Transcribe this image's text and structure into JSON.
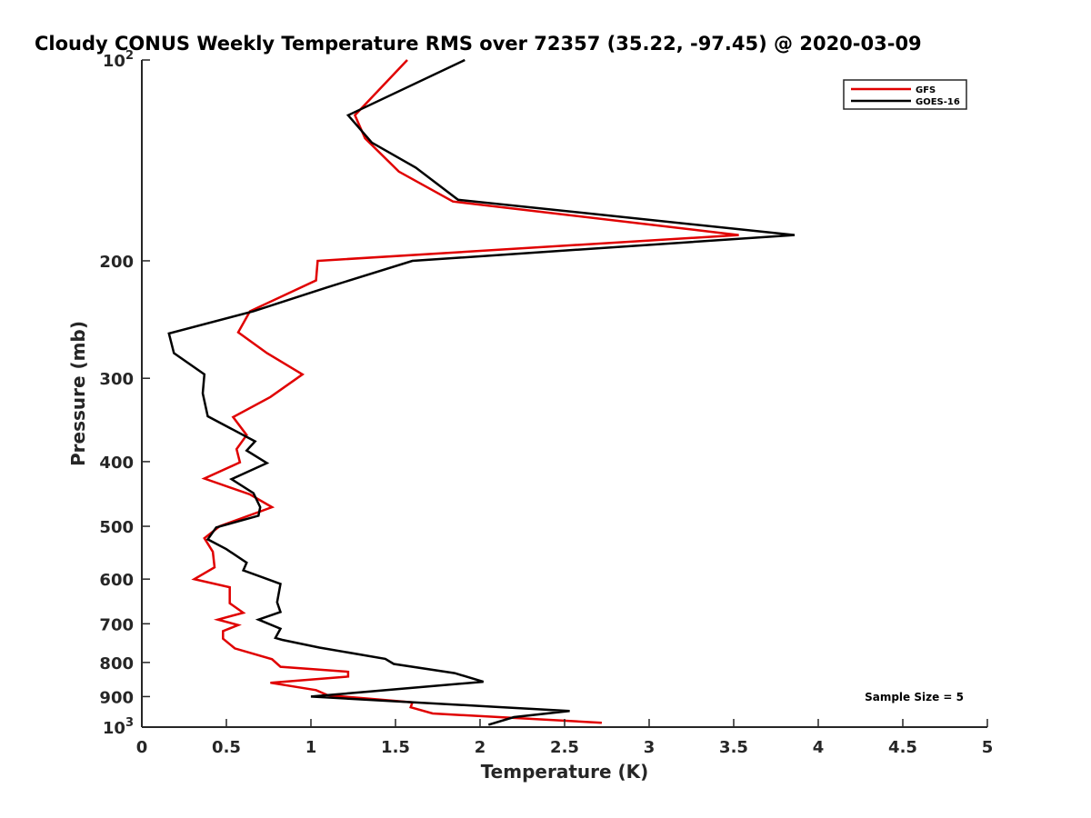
{
  "chart_data": {
    "type": "line",
    "title": "Cloudy CONUS Weekly Temperature RMS over 72357 (35.22, -97.45) @ 2020-03-09",
    "xlabel": "Temperature (K)",
    "ylabel": "Pressure (mb)",
    "xlim": [
      0,
      5
    ],
    "ylim": [
      100,
      1000
    ],
    "y_scale": "log",
    "y_reversed": true,
    "grid": false,
    "legend_position": "top-right",
    "x_ticks": [
      {
        "value": 0,
        "label": "0"
      },
      {
        "value": 0.5,
        "label": "0.5"
      },
      {
        "value": 1,
        "label": "1"
      },
      {
        "value": 1.5,
        "label": "1.5"
      },
      {
        "value": 2,
        "label": "2"
      },
      {
        "value": 2.5,
        "label": "2.5"
      },
      {
        "value": 3,
        "label": "3"
      },
      {
        "value": 3.5,
        "label": "3.5"
      },
      {
        "value": 4,
        "label": "4"
      },
      {
        "value": 4.5,
        "label": "4.5"
      },
      {
        "value": 5,
        "label": "5"
      }
    ],
    "y_ticks": [
      {
        "value": 100,
        "base": "10",
        "exp": "2"
      },
      {
        "value": 200,
        "label": "200"
      },
      {
        "value": 300,
        "label": "300"
      },
      {
        "value": 400,
        "label": "400"
      },
      {
        "value": 500,
        "label": "500"
      },
      {
        "value": 600,
        "label": "600"
      },
      {
        "value": 700,
        "label": "700"
      },
      {
        "value": 800,
        "label": "800"
      },
      {
        "value": 900,
        "label": "900"
      },
      {
        "value": 1000,
        "base": "10",
        "exp": "3"
      }
    ],
    "annotation": "Sample Size = 5",
    "series": [
      {
        "name": "GFS",
        "color": "#e00000",
        "points": [
          [
            1.57,
            100
          ],
          [
            1.26,
            121
          ],
          [
            1.32,
            131
          ],
          [
            1.52,
            147
          ],
          [
            1.84,
            163
          ],
          [
            3.53,
            183
          ],
          [
            1.04,
            200
          ],
          [
            1.03,
            214
          ],
          [
            0.64,
            238
          ],
          [
            0.57,
            256
          ],
          [
            0.74,
            275
          ],
          [
            0.95,
            296
          ],
          [
            0.76,
            320
          ],
          [
            0.54,
            343
          ],
          [
            0.62,
            365
          ],
          [
            0.56,
            383
          ],
          [
            0.58,
            401
          ],
          [
            0.37,
            424
          ],
          [
            0.64,
            448
          ],
          [
            0.77,
            468
          ],
          [
            0.46,
            500
          ],
          [
            0.37,
            521
          ],
          [
            0.42,
            546
          ],
          [
            0.43,
            576
          ],
          [
            0.31,
            600
          ],
          [
            0.52,
            617
          ],
          [
            0.52,
            652
          ],
          [
            0.6,
            674
          ],
          [
            0.45,
            690
          ],
          [
            0.57,
            703
          ],
          [
            0.48,
            718
          ],
          [
            0.48,
            737
          ],
          [
            0.55,
            762
          ],
          [
            0.77,
            791
          ],
          [
            0.82,
            812
          ],
          [
            1.22,
            826
          ],
          [
            1.22,
            840
          ],
          [
            0.76,
            858
          ],
          [
            1.03,
            880
          ],
          [
            1.1,
            896
          ],
          [
            1.6,
            918
          ],
          [
            1.59,
            934
          ],
          [
            1.72,
            954
          ],
          [
            2.72,
            985
          ]
        ]
      },
      {
        "name": "GOES-16",
        "color": "#000000",
        "points": [
          [
            1.91,
            100
          ],
          [
            1.22,
            121
          ],
          [
            1.36,
            133
          ],
          [
            1.62,
            145
          ],
          [
            1.87,
            162
          ],
          [
            3.86,
            183
          ],
          [
            1.6,
            200
          ],
          [
            1.1,
            219
          ],
          [
            0.66,
            238
          ],
          [
            0.16,
            257
          ],
          [
            0.19,
            275
          ],
          [
            0.37,
            296
          ],
          [
            0.36,
            316
          ],
          [
            0.39,
            342
          ],
          [
            0.67,
            373
          ],
          [
            0.62,
            385
          ],
          [
            0.74,
            402
          ],
          [
            0.53,
            425
          ],
          [
            0.66,
            446
          ],
          [
            0.7,
            468
          ],
          [
            0.69,
            482
          ],
          [
            0.44,
            502
          ],
          [
            0.39,
            523
          ],
          [
            0.5,
            541
          ],
          [
            0.62,
            567
          ],
          [
            0.6,
            582
          ],
          [
            0.82,
            610
          ],
          [
            0.8,
            650
          ],
          [
            0.82,
            672
          ],
          [
            0.69,
            690
          ],
          [
            0.82,
            712
          ],
          [
            0.79,
            735
          ],
          [
            0.83,
            740
          ],
          [
            1.05,
            760
          ],
          [
            1.44,
            790
          ],
          [
            1.49,
            804
          ],
          [
            1.85,
            830
          ],
          [
            2.02,
            855
          ],
          [
            1.0,
            900
          ],
          [
            2.08,
            932
          ],
          [
            2.53,
            946
          ],
          [
            2.2,
            966
          ],
          [
            2.05,
            992
          ]
        ]
      }
    ]
  }
}
